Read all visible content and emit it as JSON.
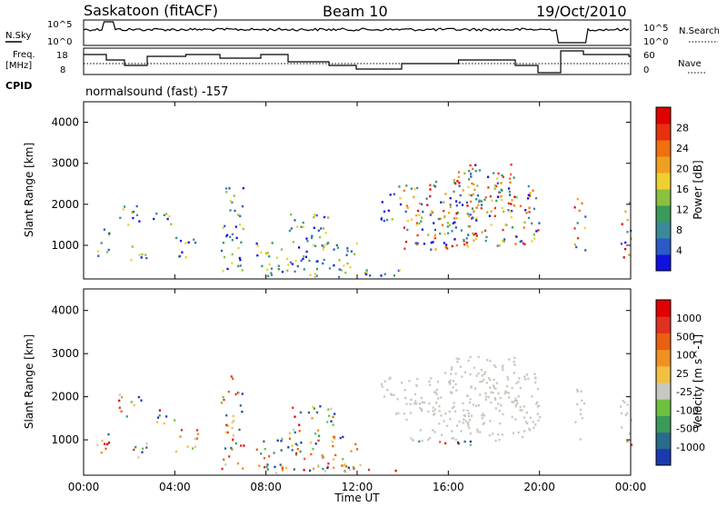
{
  "header": {
    "station": "Saskatoon (fitACF)",
    "beam": "Beam 10",
    "date": "19/Oct/2010"
  },
  "noise_panel": {
    "left_label": "N.Sky",
    "right_label": "N.Search",
    "left_ticks": [
      "10^5",
      "10^0"
    ],
    "right_ticks": [
      "10^5",
      "10^0"
    ]
  },
  "freq_panel": {
    "left_label_1": "Freq.",
    "left_label_2": "[MHz]",
    "right_label": "Nave",
    "left_ticks": [
      "18",
      "8"
    ],
    "right_ticks": [
      "60",
      "0"
    ]
  },
  "cpid": {
    "label": "CPID",
    "mode": "normalsound (fast) -157"
  },
  "chart_data": [
    {
      "type": "heatmap",
      "ylabel": "Slant Range [km]",
      "xlabel": "Time UT",
      "ylim": [
        180,
        4500
      ],
      "yticks": [
        "1000",
        "2000",
        "3000",
        "4000"
      ],
      "xticks": [
        "00:00",
        "04:00",
        "08:00",
        "12:00",
        "16:00",
        "20:00",
        "00:00"
      ],
      "colorbar": {
        "label": "Power [dB]",
        "ticks": [
          "4",
          "8",
          "12",
          "16",
          "20",
          "24",
          "28"
        ],
        "colors": [
          "#1010e0",
          "#2a5ac8",
          "#3a8a9a",
          "#3a9a5a",
          "#8cc040",
          "#f0d030",
          "#f0a020",
          "#f07010",
          "#e83010",
          "#e00000"
        ]
      }
    },
    {
      "type": "heatmap",
      "ylabel": "Slant Range [km]",
      "xlabel": "Time UT",
      "ylim": [
        180,
        4500
      ],
      "yticks": [
        "1000",
        "2000",
        "3000",
        "4000"
      ],
      "xticks": [
        "00:00",
        "04:00",
        "08:00",
        "12:00",
        "16:00",
        "20:00",
        "00:00"
      ],
      "colorbar": {
        "label": "Velocity [m s^-1]",
        "ticks": [
          "1000",
          "500",
          "100",
          "25",
          "-25",
          "-100",
          "-500",
          "-1000"
        ],
        "colors": [
          "#1a3ab0",
          "#2a6a8a",
          "#3a9a5a",
          "#70c040",
          "#c8c8c0",
          "#f0c040",
          "#f09020",
          "#e86010",
          "#e03020",
          "#e00000"
        ]
      }
    }
  ]
}
